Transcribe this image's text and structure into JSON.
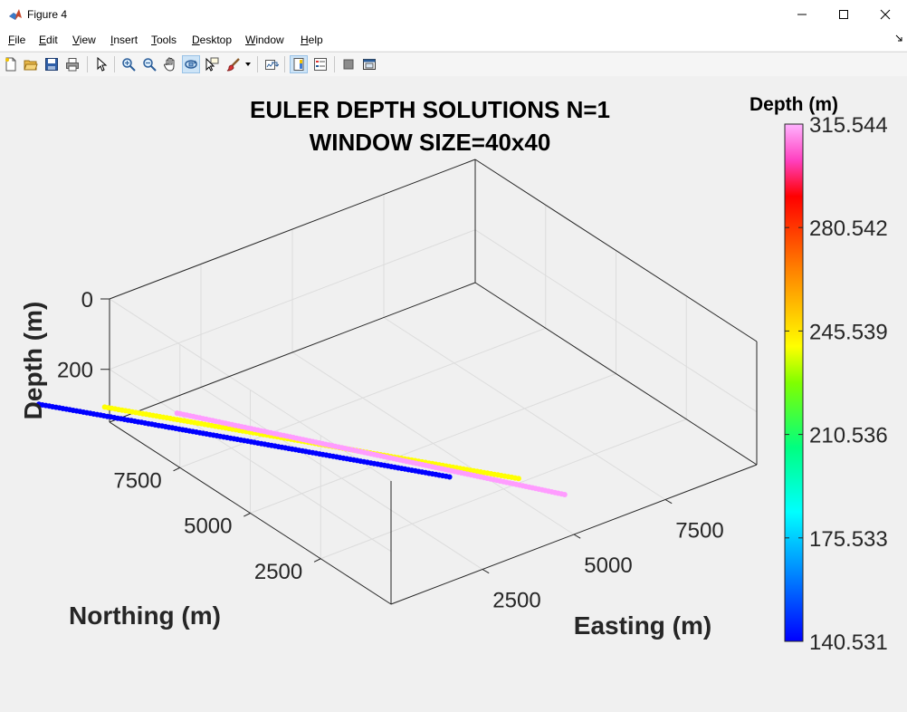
{
  "window": {
    "title": "Figure 4",
    "icon": "matlab-logo-icon",
    "controls": [
      "minimize-icon",
      "maximize-icon",
      "close-icon"
    ]
  },
  "menu": [
    {
      "label": "File",
      "ul": "F",
      "rest": "ile"
    },
    {
      "label": "Edit",
      "ul": "E",
      "rest": "dit"
    },
    {
      "label": "View",
      "ul": "V",
      "rest": "iew"
    },
    {
      "label": "Insert",
      "ul": "I",
      "rest": "nsert"
    },
    {
      "label": "Tools",
      "ul": "T",
      "rest": "ools"
    },
    {
      "label": "Desktop",
      "ul": "D",
      "rest": "esktop"
    },
    {
      "label": "Window",
      "ul": "W",
      "rest": "indow"
    },
    {
      "label": "Help",
      "ul": "H",
      "rest": "elp"
    }
  ],
  "toolbar": [
    "new-figure-icon",
    "open-file-icon",
    "save-icon",
    "print-icon",
    "select-arrow-icon",
    "zoom-in-icon",
    "zoom-out-icon",
    "pan-hand-icon",
    "rotate-3d-icon",
    "data-cursor-icon",
    "brush-icon",
    "link-plot-icon",
    "colorbar-icon",
    "legend-icon",
    "hide-plot-tools-icon",
    "show-plot-tools-icon"
  ],
  "chart_data": {
    "type": "scatter3d",
    "title": [
      "EULER DEPTH SOLUTIONS N=1",
      "WINDOW SIZE=40x40"
    ],
    "xlabel": "Easting (m)",
    "ylabel": "Northing (m)",
    "zlabel": "Depth (m)",
    "x_ticks": [
      2500,
      5000,
      7500
    ],
    "y_ticks": [
      2500,
      5000,
      7500
    ],
    "z_ticks": [
      0,
      200
    ],
    "xlim": [
      0,
      10000
    ],
    "ylim": [
      0,
      10000
    ],
    "zlim": [
      0,
      350
    ],
    "z_direction": "reverse",
    "grid": true,
    "colormap": "jet",
    "colorbar": {
      "title": "Depth (m)",
      "ticks": [
        "315.544",
        "280.542",
        "245.539",
        "210.536",
        "175.533",
        "140.531"
      ],
      "range": [
        140.531,
        315.544
      ],
      "placement": "right"
    },
    "series": [
      {
        "color": "#0000ff",
        "depth": 140.531,
        "x": [
          -2700,
          2430
        ],
        "y": [
          9000,
          1080
        ]
      },
      {
        "color": "#ffff00",
        "depth": 220,
        "x": [
          -900,
          4320
        ],
        "y": [
          9000,
          1080
        ]
      },
      {
        "color": "#ff9cff",
        "depth": 315.544,
        "x": [
          1080,
          5580
        ],
        "y": [
          9000,
          1080
        ]
      }
    ]
  }
}
